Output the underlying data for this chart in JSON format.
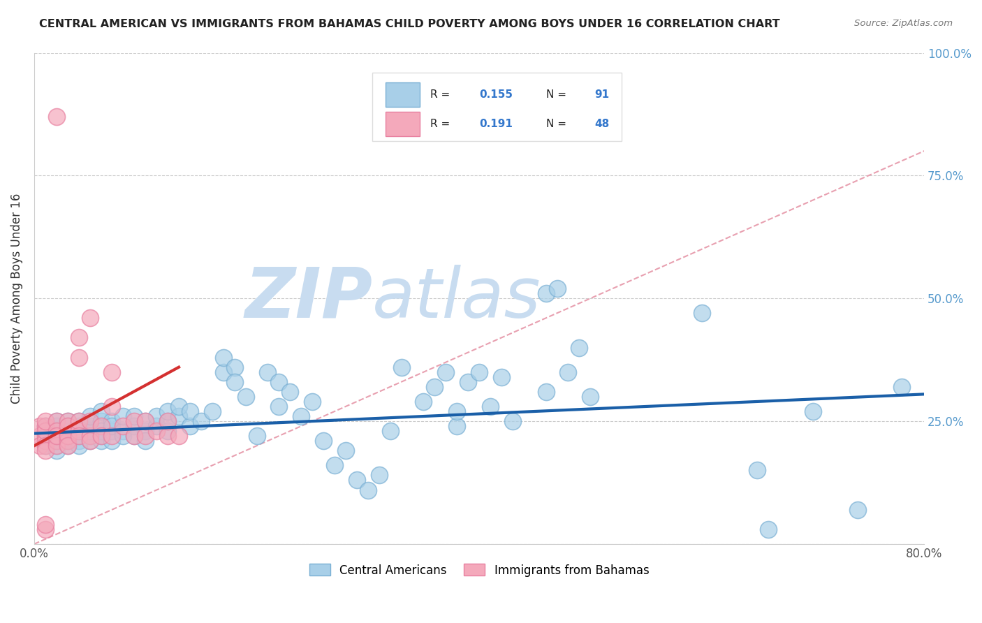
{
  "title": "CENTRAL AMERICAN VS IMMIGRANTS FROM BAHAMAS CHILD POVERTY AMONG BOYS UNDER 16 CORRELATION CHART",
  "source": "Source: ZipAtlas.com",
  "ylabel": "Child Poverty Among Boys Under 16",
  "xlim": [
    0.0,
    0.8
  ],
  "ylim": [
    0.0,
    1.0
  ],
  "xticks": [
    0.0,
    0.1,
    0.2,
    0.3,
    0.4,
    0.5,
    0.6,
    0.7,
    0.8
  ],
  "xticklabels": [
    "0.0%",
    "",
    "",
    "",
    "",
    "",
    "",
    "",
    "80.0%"
  ],
  "yticks": [
    0.0,
    0.25,
    0.5,
    0.75,
    1.0
  ],
  "yticklabels_right": [
    "",
    "25.0%",
    "50.0%",
    "75.0%",
    "100.0%"
  ],
  "blue_color": "#a8cfe8",
  "pink_color": "#f4a9bb",
  "trend_blue": "#1a5fa8",
  "trend_pink": "#d43030",
  "diagonal_color": "#e8a0b0",
  "watermark_zip_color": "#c8dcf0",
  "watermark_atlas_color": "#c8dcf0",
  "background_color": "#ffffff",
  "blue_scatter_x": [
    0.01,
    0.01,
    0.01,
    0.02,
    0.02,
    0.02,
    0.02,
    0.02,
    0.02,
    0.02,
    0.03,
    0.03,
    0.03,
    0.03,
    0.03,
    0.03,
    0.03,
    0.04,
    0.04,
    0.04,
    0.04,
    0.04,
    0.04,
    0.05,
    0.05,
    0.05,
    0.05,
    0.05,
    0.06,
    0.06,
    0.06,
    0.06,
    0.06,
    0.07,
    0.07,
    0.07,
    0.07,
    0.08,
    0.08,
    0.08,
    0.09,
    0.09,
    0.09,
    0.1,
    0.1,
    0.1,
    0.11,
    0.11,
    0.12,
    0.12,
    0.12,
    0.13,
    0.13,
    0.14,
    0.14,
    0.15,
    0.16,
    0.17,
    0.17,
    0.18,
    0.18,
    0.19,
    0.2,
    0.21,
    0.22,
    0.22,
    0.23,
    0.24,
    0.25,
    0.26,
    0.27,
    0.28,
    0.29,
    0.3,
    0.31,
    0.32,
    0.33,
    0.35,
    0.36,
    0.37,
    0.38,
    0.38,
    0.39,
    0.4,
    0.41,
    0.42,
    0.43,
    0.46,
    0.48,
    0.5,
    0.6
  ],
  "blue_scatter_y": [
    0.22,
    0.24,
    0.2,
    0.21,
    0.23,
    0.2,
    0.24,
    0.19,
    0.22,
    0.25,
    0.22,
    0.24,
    0.21,
    0.23,
    0.2,
    0.25,
    0.22,
    0.21,
    0.24,
    0.22,
    0.23,
    0.2,
    0.25,
    0.22,
    0.24,
    0.21,
    0.23,
    0.26,
    0.22,
    0.25,
    0.23,
    0.21,
    0.27,
    0.23,
    0.25,
    0.21,
    0.24,
    0.23,
    0.26,
    0.22,
    0.24,
    0.22,
    0.26,
    0.23,
    0.25,
    0.21,
    0.24,
    0.26,
    0.23,
    0.25,
    0.27,
    0.26,
    0.28,
    0.24,
    0.27,
    0.25,
    0.27,
    0.35,
    0.38,
    0.36,
    0.33,
    0.3,
    0.22,
    0.35,
    0.33,
    0.28,
    0.31,
    0.26,
    0.29,
    0.21,
    0.16,
    0.19,
    0.13,
    0.11,
    0.14,
    0.23,
    0.36,
    0.29,
    0.32,
    0.35,
    0.24,
    0.27,
    0.33,
    0.35,
    0.28,
    0.34,
    0.25,
    0.31,
    0.35,
    0.3,
    0.47
  ],
  "blue_scatter_x2": [
    0.46,
    0.47,
    0.49,
    0.65,
    0.66,
    0.7,
    0.74,
    0.78
  ],
  "blue_scatter_y2": [
    0.51,
    0.52,
    0.4,
    0.15,
    0.03,
    0.27,
    0.07,
    0.32
  ],
  "pink_scatter_x": [
    0.005,
    0.005,
    0.005,
    0.01,
    0.01,
    0.01,
    0.01,
    0.01,
    0.01,
    0.01,
    0.02,
    0.02,
    0.02,
    0.02,
    0.02,
    0.02,
    0.02,
    0.03,
    0.03,
    0.03,
    0.03,
    0.03,
    0.03,
    0.04,
    0.04,
    0.04,
    0.04,
    0.04,
    0.05,
    0.05,
    0.05,
    0.05,
    0.06,
    0.06,
    0.07,
    0.07,
    0.07,
    0.08,
    0.09,
    0.09,
    0.1,
    0.1,
    0.11,
    0.12,
    0.12,
    0.13,
    0.01,
    0.01
  ],
  "pink_scatter_y": [
    0.22,
    0.24,
    0.2,
    0.22,
    0.24,
    0.21,
    0.23,
    0.2,
    0.25,
    0.19,
    0.22,
    0.25,
    0.21,
    0.23,
    0.2,
    0.22,
    0.87,
    0.22,
    0.25,
    0.21,
    0.24,
    0.22,
    0.2,
    0.23,
    0.25,
    0.22,
    0.38,
    0.42,
    0.22,
    0.25,
    0.21,
    0.46,
    0.24,
    0.22,
    0.22,
    0.28,
    0.35,
    0.24,
    0.22,
    0.25,
    0.22,
    0.25,
    0.23,
    0.22,
    0.25,
    0.22,
    0.03,
    0.04
  ],
  "blue_trend_x": [
    0.0,
    0.8
  ],
  "blue_trend_y": [
    0.225,
    0.305
  ],
  "pink_trend_x": [
    0.0,
    0.13
  ],
  "pink_trend_y": [
    0.2,
    0.36
  ]
}
